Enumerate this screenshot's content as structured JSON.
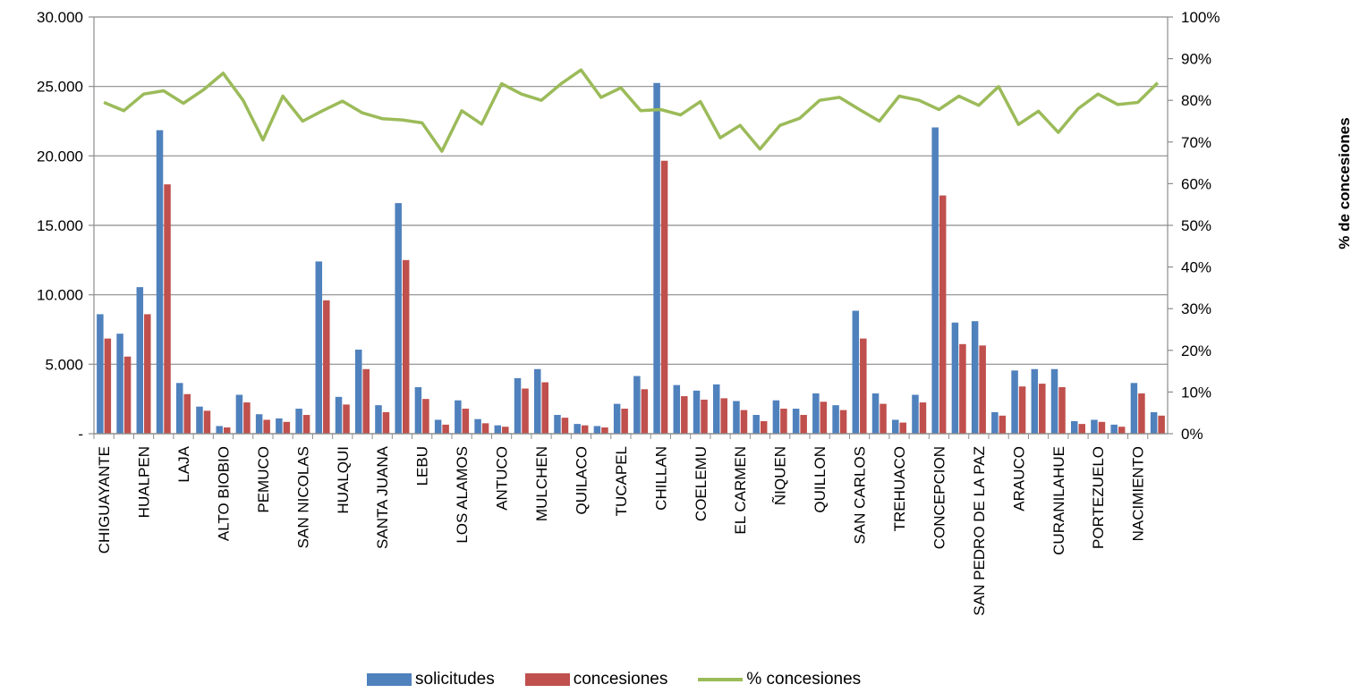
{
  "chart_data": {
    "type": "bar",
    "categories": [
      "CHIGUAYANTE",
      "",
      "HUALPEN",
      "",
      "LAJA",
      "",
      "ALTO BIOBIO",
      "",
      "PEMUCO",
      "",
      "SAN NICOLAS",
      "",
      "HUALQUI",
      "",
      "SANTA JUANA",
      "",
      "LEBU",
      "",
      "LOS ALAMOS",
      "",
      "ANTUCO",
      "",
      "MULCHEN",
      "",
      "QUILACO",
      "",
      "TUCAPEL",
      "",
      "CHILLAN",
      "",
      "COELEMU",
      "",
      "EL CARMEN",
      "",
      "ÑIQUEN",
      "",
      "QUILLON",
      "",
      "SAN CARLOS",
      "",
      "TREHUACO",
      "",
      "CONCEPCION",
      "",
      "SAN PEDRO DE LA PAZ",
      "",
      "ARAUCO",
      "",
      "CURANILAHUE",
      "",
      "PORTEZUELO",
      "",
      "NACIMIENTO",
      ""
    ],
    "series": [
      {
        "name": "solicitudes",
        "color": "#4F81BD",
        "axis": "left",
        "values": [
          8600,
          7200,
          10550,
          21850,
          3650,
          1950,
          550,
          2800,
          1400,
          1100,
          1800,
          12400,
          2650,
          6050,
          2050,
          16600,
          3350,
          1000,
          2400,
          1050,
          600,
          4000,
          4650,
          1350,
          700,
          550,
          2150,
          4150,
          25250,
          3500,
          3100,
          3550,
          2350,
          1350,
          2400,
          1800,
          2900,
          2050,
          8850,
          2900,
          1000,
          2800,
          22050,
          8000,
          8100,
          1550,
          4550,
          4650,
          4650,
          900,
          1000,
          650,
          3650,
          1550
        ]
      },
      {
        "name": "concesiones",
        "color": "#C0504D",
        "axis": "left",
        "values": [
          6850,
          5550,
          8600,
          17950,
          2850,
          1650,
          450,
          2250,
          1000,
          850,
          1350,
          9600,
          2100,
          4650,
          1550,
          12500,
          2500,
          650,
          1800,
          750,
          500,
          3250,
          3700,
          1150,
          600,
          450,
          1800,
          3200,
          19650,
          2700,
          2450,
          2550,
          1700,
          900,
          1800,
          1350,
          2300,
          1700,
          6850,
          2150,
          800,
          2250,
          17150,
          6450,
          6350,
          1300,
          3400,
          3600,
          3350,
          700,
          850,
          500,
          2900,
          1300
        ]
      },
      {
        "name": "% concesiones",
        "color": "#9BBB59",
        "axis": "right",
        "type": "line",
        "values": [
          79.5,
          77.5,
          81.5,
          82.3,
          79.3,
          82.5,
          86.5,
          80,
          70.5,
          81,
          75,
          77.5,
          79.8,
          77,
          75.6,
          75.3,
          74.6,
          67.8,
          77.5,
          74.3,
          84,
          81.5,
          80,
          84,
          87.3,
          80.7,
          83,
          77.5,
          77.8,
          76.5,
          79.7,
          71,
          74,
          68.3,
          74,
          75.7,
          80,
          80.7,
          77.8,
          75,
          81,
          80,
          77.8,
          81,
          78.8,
          83.3,
          74.2,
          77.4,
          72.3,
          78,
          81.5,
          79,
          79.5,
          84.2
        ]
      }
    ],
    "y_left": {
      "ylim": [
        0,
        30000
      ],
      "ticks": [
        "-",
        "5.000",
        "10.000",
        "15.000",
        "20.000",
        "25.000",
        "30.000"
      ]
    },
    "y_right": {
      "ylim": [
        0,
        100
      ],
      "ticks": [
        "0%",
        "10%",
        "20%",
        "30%",
        "40%",
        "50%",
        "60%",
        "70%",
        "80%",
        "90%",
        "100%"
      ],
      "label": "% de concesiones"
    },
    "grid": true,
    "legend": {
      "placement": "bottom",
      "items": [
        "solicitudes",
        "concesiones",
        "% concesiones"
      ]
    }
  }
}
